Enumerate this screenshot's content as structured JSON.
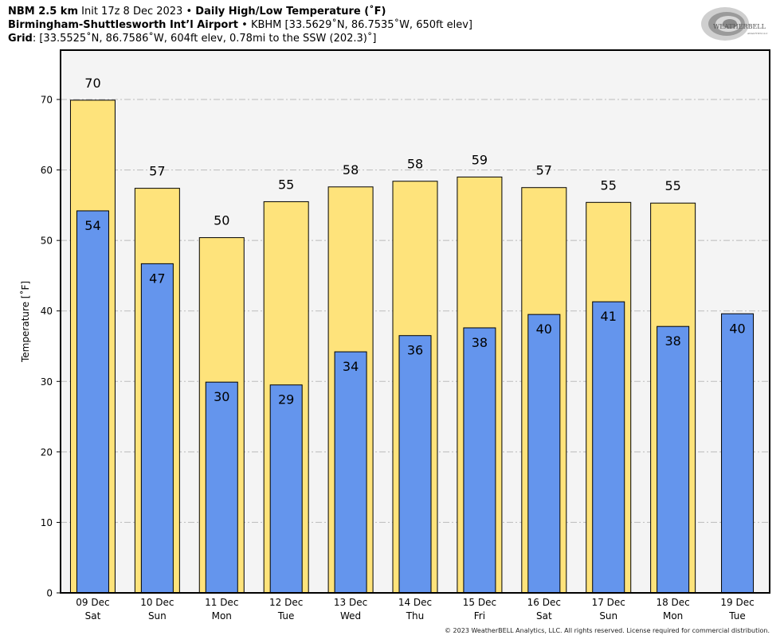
{
  "header": {
    "line1": {
      "model": "NBM 2.5 km",
      "init": "Init 17z 8 Dec 2023",
      "sep": "•",
      "title": "Daily High/Low Temperature (˚F)"
    },
    "line2": {
      "station": "Birmingham-Shuttlesworth Int’l Airport",
      "sep": "•",
      "detail": "KBHM [33.5629˚N, 86.7535˚W, 650ft elev]"
    },
    "line3": {
      "label": "Grid",
      "detail": ": [33.5525˚N, 86.7586˚W, 604ft elev, 0.78mi to the SSW (202.3)˚]"
    }
  },
  "logo": {
    "text_main": "WEATHERBELL",
    "text_sub": "ANALYTICS LLC"
  },
  "copyright": "© 2023 WeatherBELL Analytics, LLC. All rights reserved. License required for commercial distribution.",
  "colors": {
    "high": "#fee37b",
    "low": "#6495ed",
    "plot_bg": "#f4f4f4",
    "grid": "#bbbbbb"
  },
  "chart_data": {
    "type": "bar",
    "title": "Daily High/Low Temperature (˚F)",
    "xlabel": "",
    "ylabel": "Temperature [˚F]",
    "ylim": [
      0,
      77
    ],
    "yticks": [
      0,
      10,
      20,
      30,
      40,
      50,
      60,
      70
    ],
    "grid": true,
    "categories": [
      {
        "date": "09 Dec",
        "day": "Sat"
      },
      {
        "date": "10 Dec",
        "day": "Sun"
      },
      {
        "date": "11 Dec",
        "day": "Mon"
      },
      {
        "date": "12 Dec",
        "day": "Tue"
      },
      {
        "date": "13 Dec",
        "day": "Wed"
      },
      {
        "date": "14 Dec",
        "day": "Thu"
      },
      {
        "date": "15 Dec",
        "day": "Fri"
      },
      {
        "date": "16 Dec",
        "day": "Sat"
      },
      {
        "date": "17 Dec",
        "day": "Sun"
      },
      {
        "date": "18 Dec",
        "day": "Mon"
      },
      {
        "date": "19 Dec",
        "day": "Tue"
      }
    ],
    "series": [
      {
        "name": "High",
        "values": [
          69.9,
          57.4,
          50.4,
          55.5,
          57.6,
          58.4,
          59.0,
          57.5,
          55.4,
          55.3,
          null
        ],
        "labels": [
          "70",
          "57",
          "50",
          "55",
          "58",
          "58",
          "59",
          "57",
          "55",
          "55",
          null
        ]
      },
      {
        "name": "Low",
        "values": [
          54.2,
          46.7,
          29.9,
          29.5,
          34.2,
          36.5,
          37.6,
          39.5,
          41.3,
          37.8,
          39.6
        ],
        "labels": [
          "54",
          "47",
          "30",
          "29",
          "34",
          "36",
          "38",
          "40",
          "41",
          "38",
          "40"
        ]
      }
    ]
  }
}
